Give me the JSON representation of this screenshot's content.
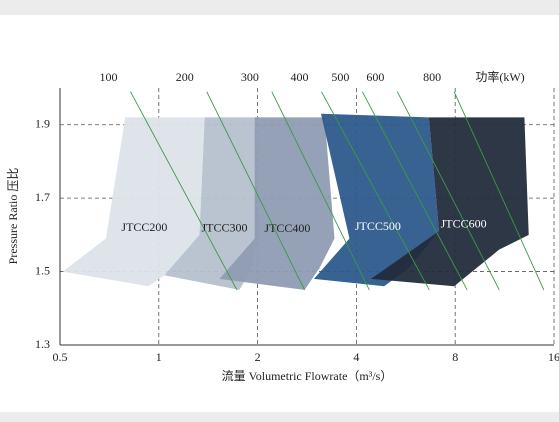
{
  "chart_data": {
    "type": "region",
    "x_label": "流量 Volumetric Flowrate（m³/s）",
    "y_label": "Pressure Ratio 压比",
    "xlim": [
      0.5,
      16
    ],
    "xticks": [
      0.5,
      1,
      2,
      4,
      8,
      16
    ],
    "log_x": true,
    "ylim": [
      1.3,
      2.0
    ],
    "yticks": [
      1.3,
      1.5,
      1.7,
      1.9
    ],
    "grid": true,
    "series": [
      {
        "name": "JTCC200",
        "color": "#dde3ea",
        "label_color": "#222222",
        "x": [
          0.51,
          0.69,
          0.79,
          1.38,
          1.33,
          1.04,
          0.93
        ],
        "y": [
          1.5,
          1.59,
          1.92,
          1.92,
          1.6,
          1.49,
          1.46
        ]
      },
      {
        "name": "JTCC300",
        "color": "#b6c0ce",
        "label_color": "#222222",
        "x": [
          1.04,
          1.33,
          1.38,
          1.97,
          2.0,
          1.9,
          1.76
        ],
        "y": [
          1.49,
          1.6,
          1.92,
          1.92,
          1.59,
          1.5,
          1.45
        ]
      },
      {
        "name": "JTCC400",
        "color": "#8e9cb2",
        "label_color": "#222222",
        "x": [
          1.53,
          1.96,
          1.96,
          3.2,
          3.43,
          3.09,
          2.78
        ],
        "y": [
          1.48,
          1.59,
          1.92,
          1.92,
          1.59,
          1.51,
          1.45
        ]
      },
      {
        "name": "JTCC500",
        "color": "#2c5a8c",
        "label_color": "#ffffff",
        "x": [
          2.97,
          3.81,
          3.12,
          6.65,
          7.14,
          5.78,
          4.86
        ],
        "y": [
          1.48,
          1.59,
          1.93,
          1.92,
          1.61,
          1.51,
          1.46
        ]
      },
      {
        "name": "JTCC600",
        "color": "#222c3c",
        "label_color": "#ffffff",
        "x": [
          4.43,
          7.14,
          6.65,
          13.0,
          13.4,
          10.9,
          7.94
        ],
        "y": [
          1.48,
          1.61,
          1.92,
          1.92,
          1.6,
          1.56,
          1.46
        ]
      }
    ],
    "power_label": "功率(kW)",
    "power_color": "#3c9a46",
    "power_lines": [
      {
        "name": "100",
        "x": [
          0.82,
          1.73
        ],
        "y": [
          1.99,
          1.45
        ]
      },
      {
        "name": "200",
        "x": [
          1.4,
          2.78
        ],
        "y": [
          1.99,
          1.45
        ]
      },
      {
        "name": "300",
        "x": [
          2.21,
          4.38
        ],
        "y": [
          1.99,
          1.45
        ]
      },
      {
        "name": "400",
        "x": [
          3.13,
          6.67
        ],
        "y": [
          1.99,
          1.45
        ]
      },
      {
        "name": "500",
        "x": [
          4.17,
          8.7
        ],
        "y": [
          1.99,
          1.45
        ]
      },
      {
        "name": "600",
        "x": [
          5.33,
          10.9
        ],
        "y": [
          1.99,
          1.45
        ]
      },
      {
        "name": "800",
        "x": [
          7.94,
          14.9
        ],
        "y": [
          1.99,
          1.45
        ]
      }
    ]
  }
}
